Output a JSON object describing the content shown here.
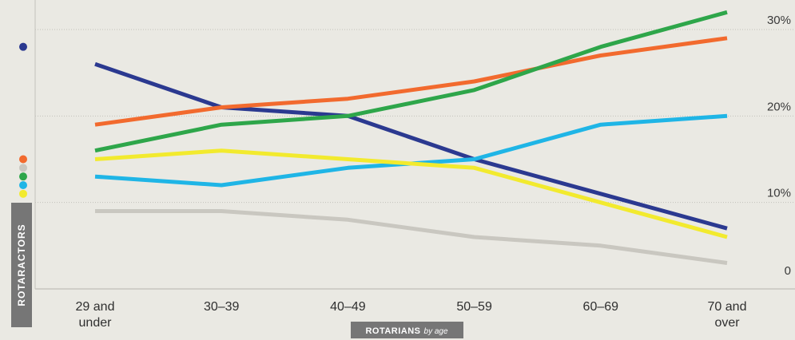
{
  "chart_data": {
    "type": "line",
    "categories": [
      "29 and\nunder",
      "30–39",
      "40–49",
      "50–59",
      "60–69",
      "70 and\nover"
    ],
    "ylim": [
      0,
      30
    ],
    "yticks": [
      {
        "value": 0,
        "label": "0"
      },
      {
        "value": 10,
        "label": "10%"
      },
      {
        "value": 20,
        "label": "20%"
      },
      {
        "value": 30,
        "label": "30%"
      }
    ],
    "grid": true,
    "ylabel": "ROTARACTORS",
    "xlabel": "ROTARIANS",
    "xlabel_suffix": "by age",
    "series": [
      {
        "color": "#2b3990",
        "rotaractor_dot": 28,
        "values": [
          26,
          21,
          20,
          15,
          11,
          7
        ]
      },
      {
        "color": "#f26a2e",
        "rotaractor_dot": 15,
        "values": [
          19,
          21,
          22,
          24,
          27,
          29
        ]
      },
      {
        "color": "#c9c7c0",
        "rotaractor_dot": 14,
        "values": [
          9,
          9,
          8,
          6,
          5,
          3
        ]
      },
      {
        "color": "#2ea64a",
        "rotaractor_dot": 13,
        "values": [
          16,
          19,
          20,
          23,
          28,
          32
        ]
      },
      {
        "color": "#1fb5e6",
        "rotaractor_dot": 12,
        "values": [
          13,
          12,
          14,
          15,
          19,
          20
        ]
      },
      {
        "color": "#f2ea2e",
        "rotaractor_dot": 11,
        "values": [
          15,
          16,
          15,
          14,
          10,
          6
        ]
      }
    ]
  }
}
